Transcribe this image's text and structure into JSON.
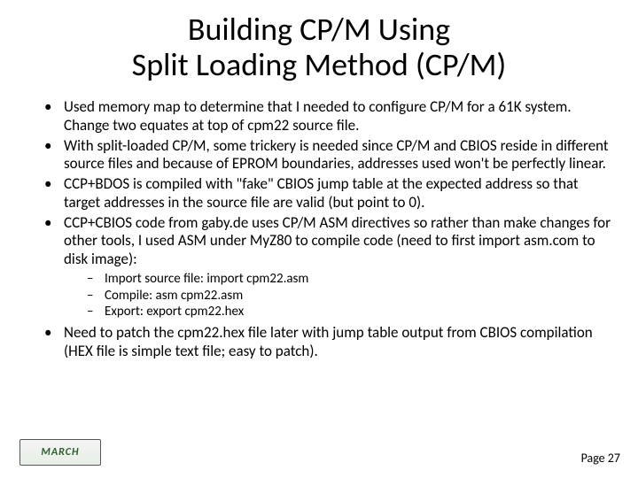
{
  "slide": {
    "title_line1": "Building CP/M Using",
    "title_line2": "Split Loading Method (CP/M)",
    "title_fontsize": 36,
    "body_fontsize": 17,
    "sub_fontsize": 15,
    "background_color": "#ffffff",
    "text_color": "#000000"
  },
  "bullets": {
    "b0": "Used memory map to determine that I needed to configure CP/M for a 61K system. Change two equates at top of cpm22 source file.",
    "b1": "With split-loaded CP/M, some trickery is needed since CP/M and CBIOS reside in different source files and because of EPROM boundaries, addresses used won't be perfectly linear.",
    "b2": "CCP+BDOS is compiled with \"fake\" CBIOS jump table at the expected address so that target addresses in the source file are valid (but point to 0).",
    "b3": "CCP+CBIOS code from gaby.de uses CP/M ASM directives so rather than make changes for other tools, I used ASM under MyZ80 to compile code (need to first import asm.com to disk image):",
    "b4": "Need to patch the cpm22.hex file later with jump table output from CBIOS compilation (HEX file is simple text file; easy to patch)."
  },
  "sub_bullets": {
    "s0": "Import source file: import cpm22.asm",
    "s1": "Compile: asm cpm22.asm",
    "s2": "Export: export cpm22.hex"
  },
  "footer": {
    "logo_text": "MARCH",
    "page_label": "Page 27"
  }
}
